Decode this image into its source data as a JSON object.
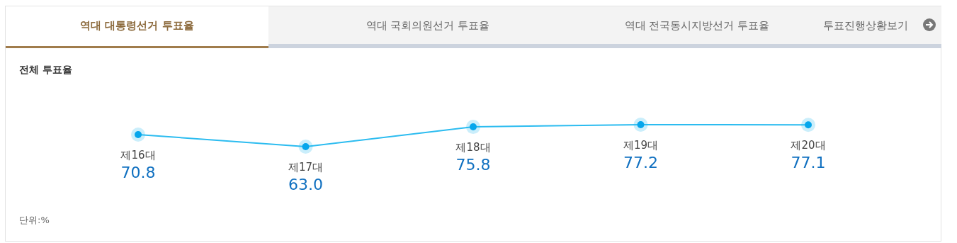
{
  "chart_data": {
    "type": "line",
    "title": "전체 투표율",
    "categories": [
      "제16대",
      "제17대",
      "제18대",
      "제19대",
      "제20대"
    ],
    "series": [
      {
        "color": "#2cbcf0",
        "values": [
          70.8,
          63.0,
          75.8,
          77.2,
          77.1
        ],
        "value_labels": [
          "70.8",
          "63.0",
          "75.8",
          "77.2",
          "77.1"
        ]
      }
    ],
    "marker": "circle",
    "annotations": [
      "역대 대통령선거 투표율",
      "역대 국회의원선거 투표율",
      "역대 전국동시지방선거 투표율",
      "투표진행상황보기",
      "단위:%"
    ]
  }
}
